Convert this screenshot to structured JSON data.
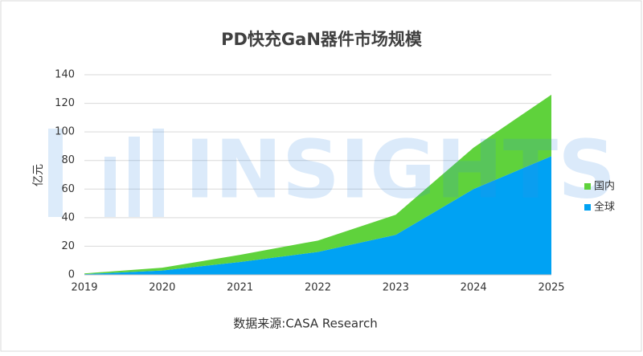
{
  "chart_data": {
    "type": "stacked-area",
    "title": "PD快充GaN器件市场规模",
    "y_label": "亿元",
    "source": "数据来源:CASA Research",
    "watermark": "INSIGHTS",
    "categories": [
      "2019",
      "2020",
      "2021",
      "2022",
      "2023",
      "2024",
      "2025"
    ],
    "series": [
      {
        "name": "全球",
        "color": "#00a2f3",
        "values": [
          0.5,
          3,
          9,
          16,
          28,
          60,
          83
        ]
      },
      {
        "name": "国内",
        "color": "#5fd23c",
        "values": [
          0.5,
          2,
          5,
          8,
          14,
          29,
          43
        ]
      }
    ],
    "ylim": [
      0,
      140
    ],
    "yticks": [
      0,
      20,
      40,
      60,
      80,
      100,
      120,
      140
    ],
    "grid": true,
    "legend": "right"
  }
}
